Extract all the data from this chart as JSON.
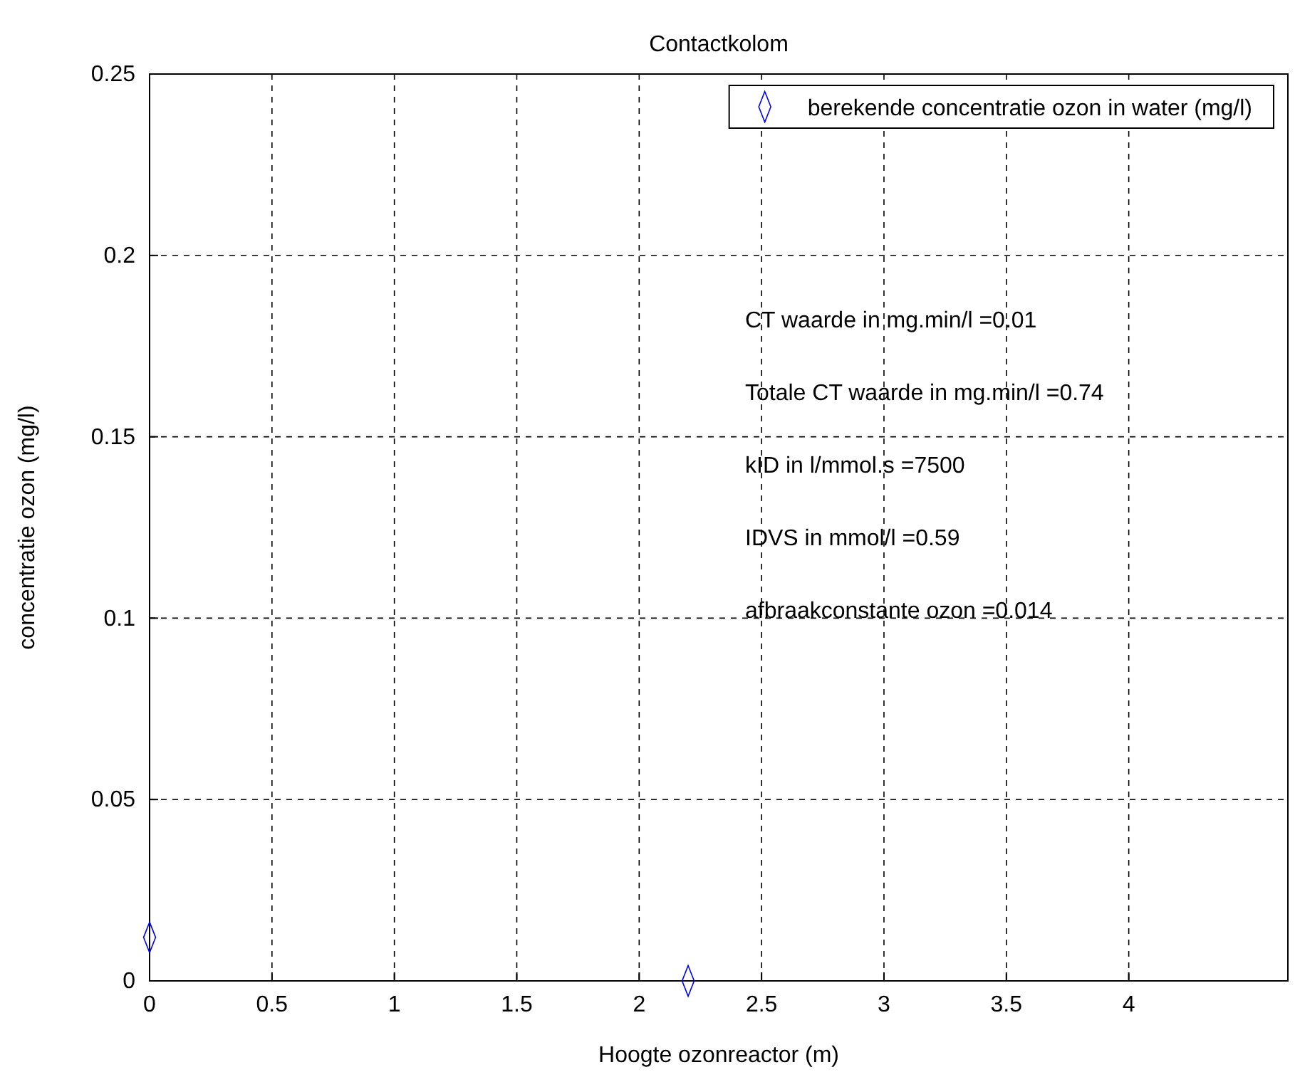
{
  "chart_data": {
    "type": "scatter",
    "title": "Contactkolom",
    "xlabel": "Hoogte ozonreactor (m)",
    "ylabel": "concentratie ozon (mg/l)",
    "x": [
      0,
      2.2
    ],
    "series": [
      {
        "name": "berekende concentratie ozon in water (mg/l)",
        "color": "#0000ff",
        "values": [
          0.012,
          0
        ]
      }
    ],
    "xlim": [
      0,
      4.65
    ],
    "xticks": [
      0,
      0.5,
      1,
      1.5,
      2,
      2.5,
      3,
      3.5,
      4
    ],
    "ylim": [
      0,
      0.25
    ],
    "yticks": [
      0,
      0.05,
      0.1,
      0.15,
      0.2,
      0.25
    ],
    "grid": true,
    "legend": "top right",
    "marker": "diamond",
    "annotations": [
      "CT waarde in mg.min/l =0.01",
      "Totale CT waarde in mg.min/l =0.74",
      "kID in l/mmol.s =7500",
      "IDVS in mmol/l =0.59",
      "afbraakconstante ozon =0.014"
    ]
  }
}
